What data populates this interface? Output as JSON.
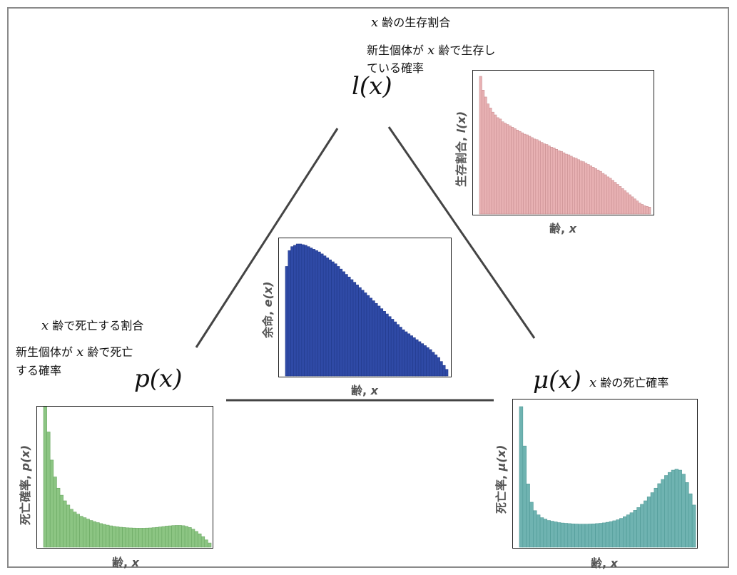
{
  "top": {
    "var": "x",
    "title_rest": " 齢の生存割合",
    "desc_line1_pre": "新生個体が",
    "desc_line1_var": "x",
    "desc_line1_post": " 齢で生存し",
    "desc_line2": "ている確率",
    "symbol": "l(x)"
  },
  "left": {
    "var": "x",
    "title_rest": " 齢で死亡する割合",
    "desc_line1_pre": "新生個体が",
    "desc_line1_var": "x",
    "desc_line1_post": " 齢で死亡",
    "desc_line2": "する確率",
    "symbol": "p(x)"
  },
  "right": {
    "symbol": "μ(x)",
    "var": "x",
    "title_rest": " 齢の死亡確率"
  },
  "panels": {
    "survival": {
      "ylabel_text": "生存割合, ",
      "ylabel_var": "l(x)",
      "xlabel_text": "齢, ",
      "xlabel_var": "x",
      "color": "#e8b1b3",
      "edge": "#c98f92"
    },
    "life": {
      "ylabel_text": "余命, ",
      "ylabel_var": "e(x)",
      "xlabel_text": "齢, ",
      "xlabel_var": "x",
      "color": "#2f4aa6",
      "edge": "#223a8c"
    },
    "death": {
      "ylabel_text": "死亡確率, ",
      "ylabel_var": "p(x)",
      "xlabel_text": "齢, ",
      "xlabel_var": "x",
      "color": "#8cc583",
      "edge": "#6aa862"
    },
    "mortality": {
      "ylabel_text": "死亡率, ",
      "ylabel_var": "μ(x)",
      "xlabel_text": "齢, ",
      "xlabel_var": "x",
      "color": "#6fb3b1",
      "edge": "#4f9996"
    }
  },
  "chart_data": [
    {
      "type": "bar",
      "name_role": "survival",
      "xlabel": "齢, x",
      "ylabel": "生存割合, l(x)",
      "values": [
        1.0,
        0.9,
        0.85,
        0.8,
        0.77,
        0.74,
        0.72,
        0.7,
        0.69,
        0.67,
        0.66,
        0.65,
        0.64,
        0.63,
        0.62,
        0.61,
        0.6,
        0.59,
        0.58,
        0.575,
        0.565,
        0.555,
        0.545,
        0.54,
        0.53,
        0.52,
        0.51,
        0.505,
        0.495,
        0.485,
        0.48,
        0.47,
        0.46,
        0.455,
        0.445,
        0.435,
        0.43,
        0.42,
        0.41,
        0.405,
        0.395,
        0.385,
        0.38,
        0.37,
        0.36,
        0.35,
        0.34,
        0.33,
        0.32,
        0.31,
        0.295,
        0.285,
        0.27,
        0.26,
        0.245,
        0.23,
        0.215,
        0.2,
        0.185,
        0.17,
        0.155,
        0.14,
        0.125,
        0.11,
        0.095,
        0.08,
        0.07,
        0.06,
        0.055,
        0.05
      ]
    },
    {
      "type": "bar",
      "name_role": "life",
      "xlabel": "齢, x",
      "ylabel": "余命, e(x)",
      "values": [
        0.83,
        0.95,
        0.98,
        0.99,
        1.0,
        1.0,
        0.995,
        0.99,
        0.98,
        0.97,
        0.96,
        0.95,
        0.94,
        0.925,
        0.91,
        0.895,
        0.88,
        0.865,
        0.85,
        0.83,
        0.81,
        0.79,
        0.77,
        0.75,
        0.73,
        0.71,
        0.69,
        0.67,
        0.65,
        0.63,
        0.61,
        0.59,
        0.57,
        0.55,
        0.53,
        0.51,
        0.49,
        0.47,
        0.45,
        0.43,
        0.41,
        0.39,
        0.37,
        0.35,
        0.335,
        0.32,
        0.305,
        0.29,
        0.275,
        0.26,
        0.245,
        0.23,
        0.215,
        0.2,
        0.18,
        0.16,
        0.14,
        0.11,
        0.08,
        0.05
      ]
    },
    {
      "type": "bar",
      "name_role": "death",
      "xlabel": "齢, x",
      "ylabel": "死亡確率, p(x)",
      "values": [
        1.0,
        0.82,
        0.62,
        0.5,
        0.42,
        0.37,
        0.33,
        0.3,
        0.27,
        0.25,
        0.235,
        0.22,
        0.21,
        0.2,
        0.19,
        0.182,
        0.175,
        0.168,
        0.162,
        0.157,
        0.152,
        0.148,
        0.145,
        0.142,
        0.14,
        0.138,
        0.137,
        0.136,
        0.135,
        0.135,
        0.135,
        0.136,
        0.137,
        0.139,
        0.141,
        0.144,
        0.147,
        0.15,
        0.152,
        0.154,
        0.155,
        0.155,
        0.153,
        0.148,
        0.14,
        0.128,
        0.112,
        0.095,
        0.075,
        0.052,
        0.03
      ]
    },
    {
      "type": "bar",
      "name_role": "mortality",
      "xlabel": "齢, x",
      "ylabel": "死亡率, μ(x)",
      "values": [
        1.0,
        0.72,
        0.45,
        0.32,
        0.26,
        0.23,
        0.21,
        0.2,
        0.19,
        0.185,
        0.18,
        0.175,
        0.172,
        0.17,
        0.168,
        0.166,
        0.165,
        0.164,
        0.164,
        0.164,
        0.165,
        0.166,
        0.168,
        0.17,
        0.173,
        0.177,
        0.182,
        0.188,
        0.195,
        0.205,
        0.217,
        0.23,
        0.245,
        0.262,
        0.282,
        0.305,
        0.33,
        0.358,
        0.388,
        0.42,
        0.452,
        0.482,
        0.51,
        0.532,
        0.548,
        0.555,
        0.548,
        0.52,
        0.46,
        0.38,
        0.3
      ]
    }
  ]
}
